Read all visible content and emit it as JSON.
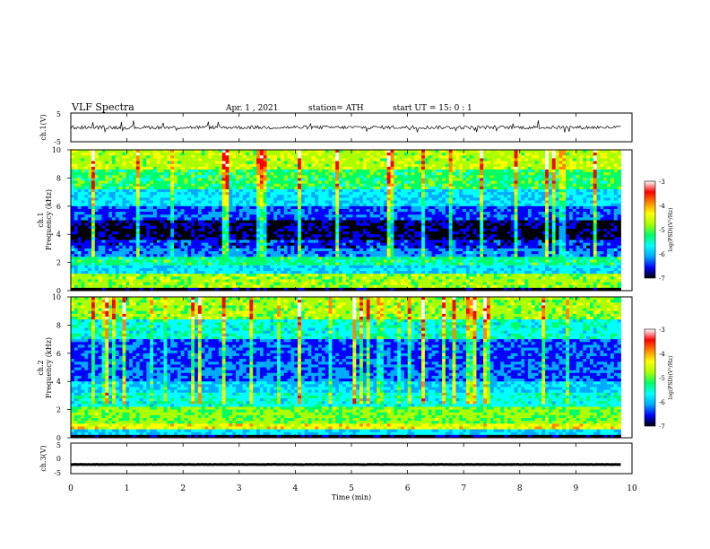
{
  "header": {
    "title": "VLF  Spectra",
    "date": "Apr. 1  , 2021",
    "station": "station= ATH",
    "start": "start  UT  =    15: 0   : 1"
  },
  "colors": {
    "trace": "#000000",
    "colormap": [
      "#000000",
      "#0000ff",
      "#00aaff",
      "#00ffff",
      "#00ff66",
      "#aaff00",
      "#ffff00",
      "#ff8800",
      "#ff0000",
      "#ffffff"
    ]
  },
  "chart_data": [
    {
      "type": "line",
      "id": "ch1",
      "ylabel": "ch.1(V)",
      "ylim": [
        -5,
        5
      ],
      "yticks": [
        "5",
        "-5"
      ],
      "x_range": [
        0,
        9.8
      ],
      "baseline": 0.0,
      "noise_amplitude": 0.6,
      "series": [
        {
          "values": "noisy trace near 0 V"
        }
      ]
    },
    {
      "type": "heatmap",
      "id": "ch1-spectrogram",
      "ylabel": "ch.1\nFrequency (kHz)",
      "ylim": [
        0,
        10
      ],
      "yticks": [
        "0",
        "2",
        "4",
        "6",
        "8",
        "10"
      ],
      "x_range": [
        0,
        9.8
      ],
      "colorbar": {
        "label": "log(PSD)(V²/Hz)",
        "min": -7,
        "max": -3,
        "ticks": [
          "-3",
          "-4",
          "-5",
          "-6",
          "-7"
        ]
      },
      "bands": [
        {
          "from": 0.0,
          "to": 0.2,
          "level": -7
        },
        {
          "from": 0.2,
          "to": 1.2,
          "level": -4.8
        },
        {
          "from": 1.2,
          "to": 1.8,
          "level": -5.8
        },
        {
          "from": 1.8,
          "to": 2.4,
          "level": -5.3
        },
        {
          "from": 2.4,
          "to": 3.0,
          "level": -6.2
        },
        {
          "from": 3.0,
          "to": 3.6,
          "level": -6.5
        },
        {
          "from": 3.6,
          "to": 5.0,
          "level": -6.9
        },
        {
          "from": 5.0,
          "to": 6.0,
          "level": -6.4
        },
        {
          "from": 6.0,
          "to": 7.2,
          "level": -5.8
        },
        {
          "from": 7.2,
          "to": 8.6,
          "level": -5.2
        },
        {
          "from": 8.6,
          "to": 10.0,
          "level": -4.7
        }
      ]
    },
    {
      "type": "heatmap",
      "id": "ch2-spectrogram",
      "ylabel": "ch.2\nFrequency (kHz)",
      "ylim": [
        0,
        10
      ],
      "yticks": [
        "0",
        "2",
        "4",
        "6",
        "8",
        "10"
      ],
      "x_range": [
        0,
        9.8
      ],
      "colorbar": {
        "label": "log(PSD)(V²/Hz)",
        "min": -7,
        "max": -3,
        "ticks": [
          "-3",
          "-4",
          "-5",
          "-6",
          "-7"
        ]
      },
      "bands": [
        {
          "from": 0.0,
          "to": 0.2,
          "level": -7
        },
        {
          "from": 0.2,
          "to": 0.6,
          "level": -5.8
        },
        {
          "from": 0.6,
          "to": 1.0,
          "level": -4.4
        },
        {
          "from": 1.0,
          "to": 2.2,
          "level": -4.9
        },
        {
          "from": 2.2,
          "to": 3.2,
          "level": -5.6
        },
        {
          "from": 3.2,
          "to": 4.0,
          "level": -5.9
        },
        {
          "from": 4.0,
          "to": 5.4,
          "level": -6.3
        },
        {
          "from": 5.4,
          "to": 7.0,
          "level": -6.4
        },
        {
          "from": 7.0,
          "to": 8.4,
          "level": -5.6
        },
        {
          "from": 8.4,
          "to": 10.0,
          "level": -4.8
        }
      ]
    },
    {
      "type": "line",
      "id": "ch3",
      "ylabel": "ch.3(V)",
      "ylim": [
        -5,
        5
      ],
      "yticks": [
        "5",
        "0",
        "-5"
      ],
      "x_range": [
        0,
        9.8
      ],
      "baseline": -2.0,
      "noise_amplitude": 0.05,
      "series": [
        {
          "values": "flat trace near -2 V"
        }
      ]
    }
  ],
  "xaxis": {
    "label": "Time  (min)",
    "lim": [
      0,
      10
    ],
    "ticks": [
      "0",
      "1",
      "2",
      "3",
      "4",
      "5",
      "6",
      "7",
      "8",
      "9",
      "10"
    ]
  }
}
